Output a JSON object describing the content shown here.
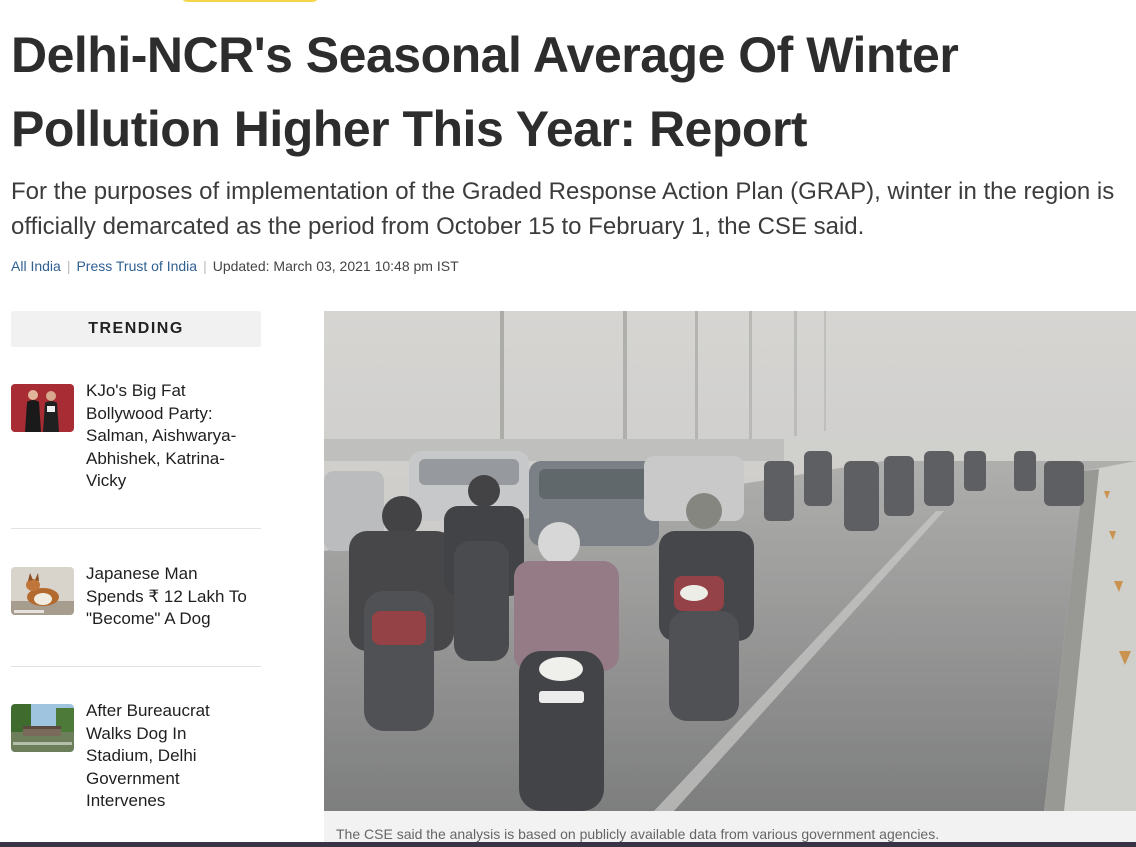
{
  "article": {
    "headline": "Delhi-NCR's Seasonal Average Of Winter Pollution Higher This Year: Report",
    "summary": "For the purposes of implementation of the Graded Response Action Plan (GRAP), winter in the region is officially demarcated as the period from October 15 to February 1, the CSE said.",
    "category": "All India",
    "source": "Press Trust of India",
    "updated": "Updated: March 03, 2021 10:48 pm IST",
    "image_caption": "The CSE said the analysis is based on publicly available data from various government agencies."
  },
  "trending": {
    "heading": "TRENDING",
    "items": [
      {
        "title": "KJo's Big Fat Bollywood Party: Salman, Aishwarya-Abhishek, Katrina-Vicky"
      },
      {
        "title": "Japanese Man Spends ₹ 12 Lakh To \"Become\" A Dog"
      },
      {
        "title": "After Bureaucrat Walks Dog In Stadium, Delhi Government Intervenes"
      }
    ]
  },
  "colors": {
    "link": "#2f5f93",
    "accent_tag": "#f5d64a",
    "headline": "#2d2d2d"
  }
}
